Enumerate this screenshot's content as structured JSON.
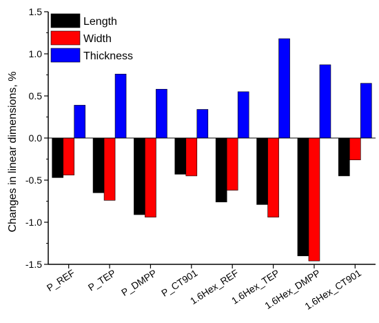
{
  "chart_data": {
    "type": "bar",
    "title": "",
    "xlabel": "",
    "ylabel": "Changes in linear dimensions, %",
    "ylim": [
      -1.5,
      1.5
    ],
    "yticks": [
      "1.5",
      "1.0",
      "0.5",
      "0.0",
      "-0.5",
      "-1.0",
      "-1.5"
    ],
    "grid": false,
    "legend_position": "top-left",
    "categories": [
      "P_REF",
      "P_TEP",
      "P_DMPP",
      "P_CT901",
      "1.6Hex_REF",
      "1.6Hex_TEP",
      "1.6Hex_DMPP",
      "1.6Hex_CT901"
    ],
    "series": [
      {
        "name": "Length",
        "color": "#000000",
        "values": [
          -0.47,
          -0.65,
          -0.91,
          -0.43,
          -0.76,
          -0.79,
          -1.4,
          -0.45
        ]
      },
      {
        "name": "Width",
        "color": "#ff0000",
        "values": [
          -0.44,
          -0.74,
          -0.94,
          -0.45,
          -0.62,
          -0.94,
          -1.46,
          -0.26
        ]
      },
      {
        "name": "Thickness",
        "color": "#0000ff",
        "values": [
          0.39,
          0.76,
          0.58,
          0.34,
          0.55,
          1.18,
          0.87,
          0.65
        ]
      }
    ]
  }
}
